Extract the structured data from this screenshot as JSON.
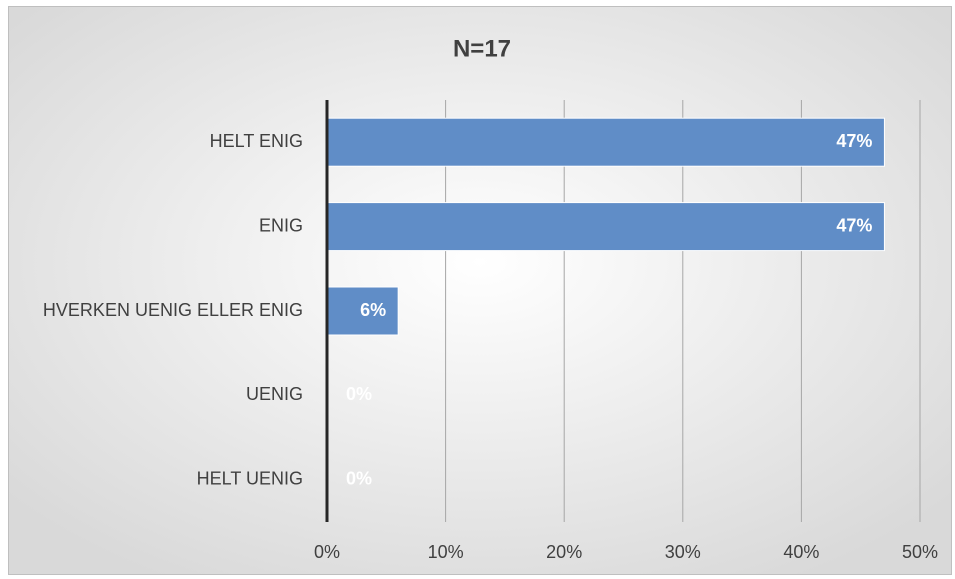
{
  "chart_data": {
    "type": "bar",
    "orientation": "horizontal",
    "title": "N=17",
    "categories": [
      "HELT ENIG",
      "ENIG",
      "HVERKEN UENIG ELLER ENIG",
      "UENIG",
      "HELT UENIG"
    ],
    "values": [
      47,
      47,
      6,
      0,
      0
    ],
    "value_labels": [
      "47%",
      "47%",
      "6%",
      "0%",
      "0%"
    ],
    "color": "#608dc7",
    "xlim": [
      0,
      50
    ],
    "xticks": [
      {
        "value": 0,
        "label": "0%"
      },
      {
        "value": 10,
        "label": "10%"
      },
      {
        "value": 20,
        "label": "20%"
      },
      {
        "value": 30,
        "label": "30%"
      },
      {
        "value": 40,
        "label": "40%"
      },
      {
        "value": 50,
        "label": "50%"
      }
    ],
    "grid": true
  }
}
